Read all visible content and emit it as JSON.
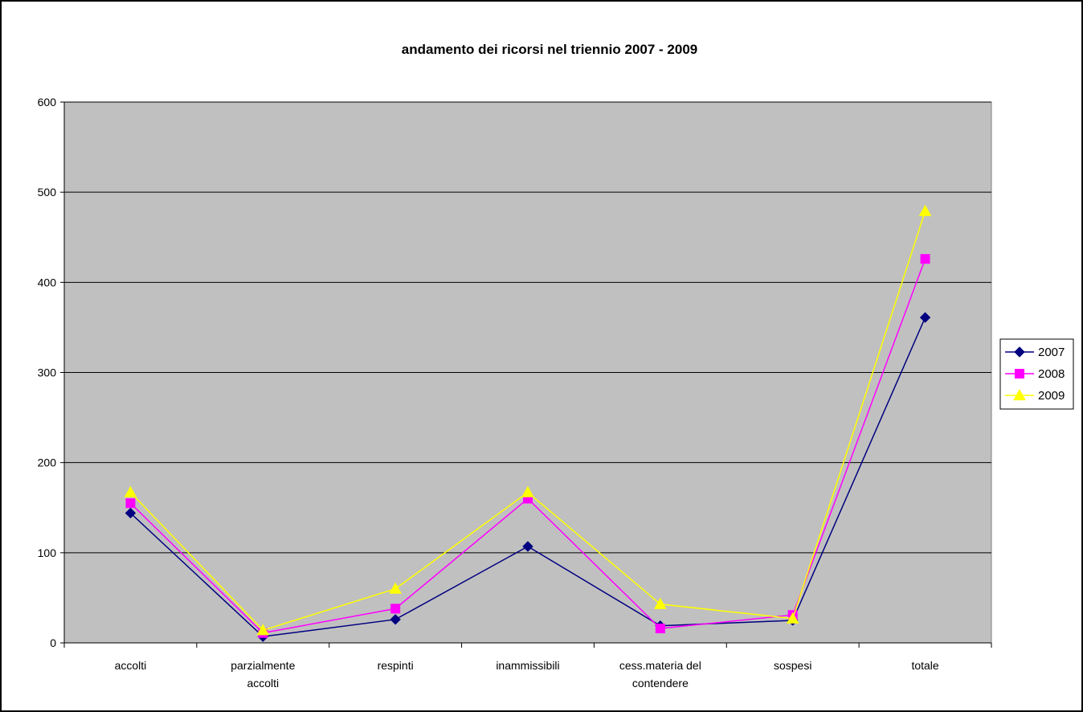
{
  "chart_data": {
    "type": "line",
    "title": "andamento dei ricorsi nel triennio 2007 - 2009",
    "xlabel": "",
    "ylabel": "",
    "categories": [
      [
        "accolti"
      ],
      [
        "parzialmente",
        "accolti"
      ],
      [
        "respinti"
      ],
      [
        "inammissibili"
      ],
      [
        "cess.materia del",
        "contendere"
      ],
      [
        "sospesi"
      ],
      [
        "totale"
      ]
    ],
    "ylim": [
      0,
      600
    ],
    "yticks": [
      "0",
      "100",
      "200",
      "300",
      "400",
      "500",
      "600"
    ],
    "grid": true,
    "legend_position": "right",
    "series": [
      {
        "name": "2007",
        "color": "#000080",
        "marker": "diamond",
        "values": [
          144,
          7,
          26,
          107,
          19,
          25,
          361
        ]
      },
      {
        "name": "2008",
        "color": "#FF00FF",
        "marker": "square",
        "values": [
          155,
          11,
          38,
          160,
          16,
          31,
          426
        ]
      },
      {
        "name": "2009",
        "color": "#FFFF00",
        "marker": "triangle",
        "values": [
          167,
          14,
          60,
          167,
          43,
          27,
          479
        ]
      }
    ],
    "colors": {
      "plot_background": "#C0C0C0",
      "gridline": "#000000",
      "frame": "#000000"
    }
  }
}
